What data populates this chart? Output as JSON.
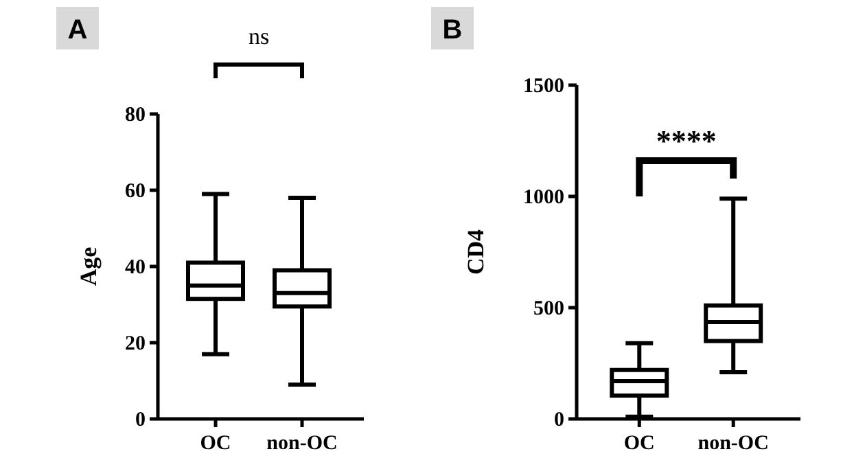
{
  "chart_data": [
    {
      "type": "box",
      "title": "A",
      "ylabel": "Age",
      "categories": [
        "OC",
        "non-OC"
      ],
      "ylim": [
        0,
        80
      ],
      "yticks": [
        0,
        20,
        40,
        60,
        80
      ],
      "annotations": [
        "ns"
      ],
      "boxes": [
        {
          "low": 17,
          "q1": 31.5,
          "median": 35,
          "q3": 41,
          "high": 59
        },
        {
          "low": 9,
          "q1": 29.5,
          "median": 33,
          "q3": 39,
          "high": 58
        }
      ]
    },
    {
      "type": "box",
      "title": "B",
      "ylabel": "CD4",
      "categories": [
        "OC",
        "non-OC"
      ],
      "ylim": [
        0,
        1500
      ],
      "yticks": [
        0,
        500,
        1000,
        1500
      ],
      "annotations": [
        "****"
      ],
      "boxes": [
        {
          "low": 10,
          "q1": 105,
          "median": 170,
          "q3": 220,
          "high": 340
        },
        {
          "low": 210,
          "q1": 350,
          "median": 435,
          "q3": 510,
          "high": 990
        }
      ]
    }
  ]
}
